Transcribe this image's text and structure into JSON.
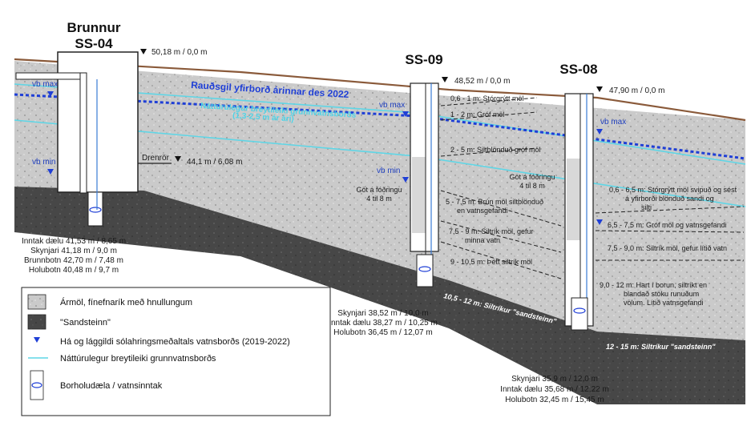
{
  "ss04": {
    "title_line1": "Brunnur",
    "title_line2": "SS-04",
    "top": "50,18 m / 0,0 m",
    "drain_label": "Drenrör",
    "drain_level": "44,1 m / 6,08 m",
    "vb_max": "vb max",
    "vb_min": "vb min",
    "info": [
      "Inntak dælu 41,53 m / 8,65 m",
      "Skynjari 41,18 m / 9,0 m",
      "Brunnbotn 42,70 m / 7,48 m",
      "Holubotn 40,48 m / 9,7 m"
    ]
  },
  "ss09": {
    "title": "SS-09",
    "top": "48,52 m / 0,0 m",
    "vb_max": "vb max",
    "vb_min": "vb min",
    "casing_note": [
      "Göt á fóðringu",
      "4 til 8 m"
    ],
    "layers": [
      "0,6 - 1 m: Stórgrýtt möl",
      "1 - 2 m: Gróf möl",
      "2 - 5 m: Siltblönduð gróf möl",
      "5 - 7,5 m: Brún möl siltblönduð",
      "en vatnsgefandi",
      "7,5 - 9 m: Siltrík möl, gefur",
      "minna vatn",
      "9 - 10,5 m: Þétt siltrík möl",
      "10,5 - 12 m: Siltríkur \"sandsteinn\""
    ],
    "info": [
      "Skynjari 38,52 m / 10,0 m",
      "Inntak dælu 38,27 m / 10,25 m",
      "Holubotn 36,45 m / 12,07 m"
    ]
  },
  "ss08": {
    "title": "SS-08",
    "top": "47,90 m / 0,0 m",
    "vb_max": "vb max",
    "casing_note": [
      "Göt á fóðringu",
      "4 til 8 m"
    ],
    "layers": [
      "0,6 - 6,5 m: Stórgrýtt möl svipuð og sést",
      "á yfirborði blönduð sandi og",
      "silti",
      "6,5 - 7,5 m: Gróf möl og vatnsgefandi",
      "7,5 - 9,0 m: Siltrík möl, gefur lítið vatn",
      "9,0 - 12 m: Hart í borun, siltríkt en",
      "blandað stöku runuðum",
      "völum. Lítið vatnsgefandi",
      "12 - 15 m: Siltríkur \"sandsteinn\""
    ],
    "info": [
      "Skynjari 35,9 m / 12,0 m",
      "Inntak dælu 35,68 m / 12,22 m",
      "Holubotn 32,45 m / 15,45 m"
    ]
  },
  "river_label": "Rauðsgil yfirborð árinnar des 2022",
  "gw_label": [
    "Náttúrulegur breytileiki grunnvatnsborðs",
    "(1,3-2,5 m ár ári)"
  ],
  "legend": {
    "items": [
      "Ármöl, fínefnarík með hnullungum",
      "\"Sandsteinn\"",
      "Há og lággildi sólahringsmeðaltals vatnsborðs (2019-2022)",
      "Náttúrulegur breytileiki grunnvatnsborðs",
      "Borholudæla / vatnsinntak"
    ]
  },
  "colors": {
    "gravel": "#c9c9c9",
    "sandstone": "#4a4a4a",
    "river": "#1f3fd6",
    "groundwater": "#5fd6e6",
    "topsoil": "#8a6a4a"
  }
}
